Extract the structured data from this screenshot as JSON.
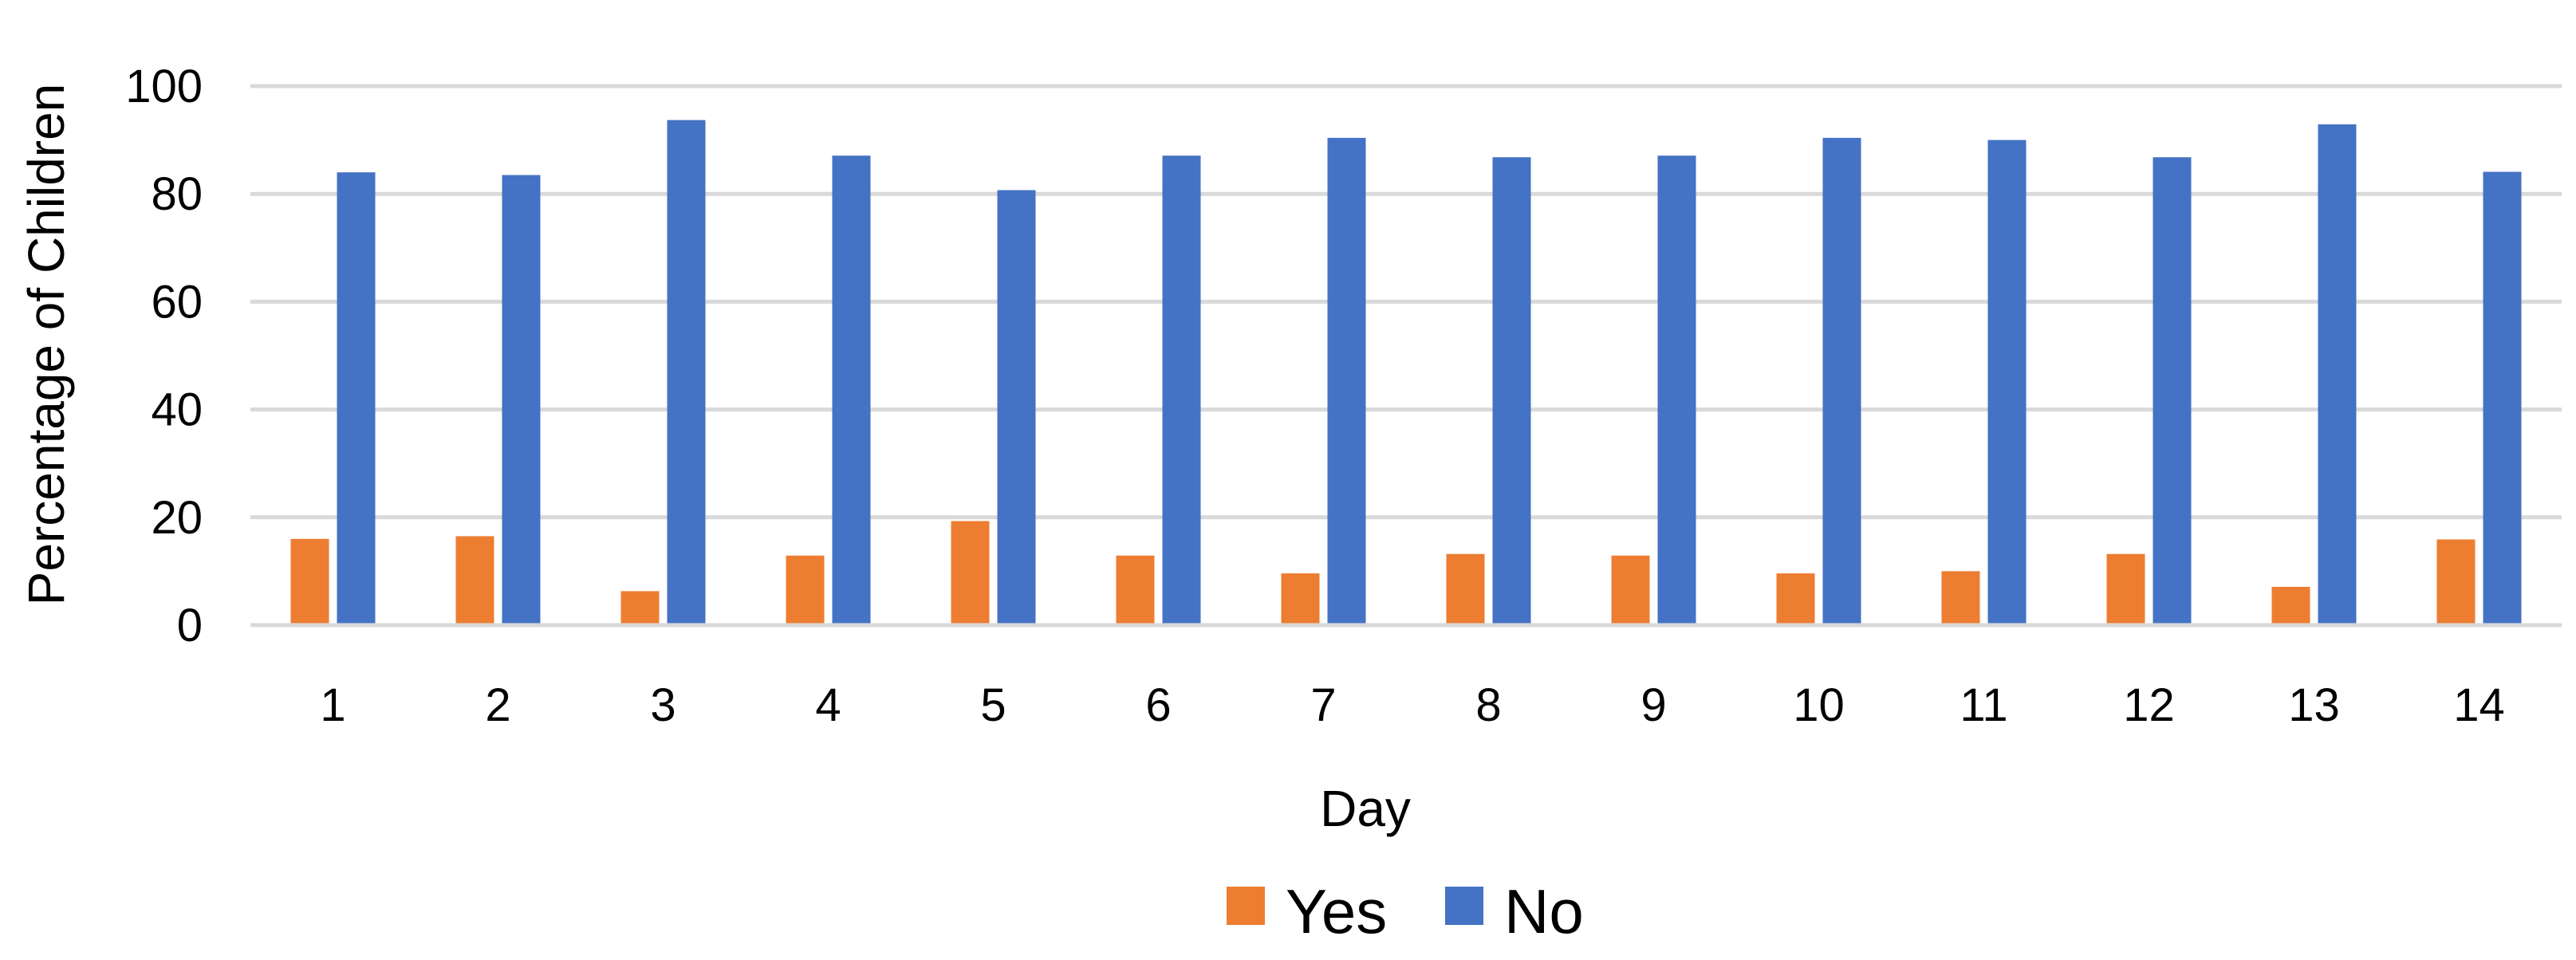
{
  "chart_data": {
    "type": "bar",
    "categories": [
      "1",
      "2",
      "3",
      "4",
      "5",
      "6",
      "7",
      "8",
      "9",
      "10",
      "11",
      "12",
      "13",
      "14"
    ],
    "series": [
      {
        "name": "Yes",
        "color": "#ED7D31",
        "values": [
          16,
          16.5,
          6.3,
          12.9,
          19.3,
          12.9,
          9.6,
          13.2,
          12.9,
          9.6,
          10,
          13.2,
          7.1,
          15.9
        ]
      },
      {
        "name": "No",
        "color": "#4472C4",
        "values": [
          84,
          83.5,
          93.7,
          87.1,
          80.7,
          87.1,
          90.4,
          86.8,
          87.1,
          90.4,
          90,
          86.8,
          92.9,
          84.1
        ]
      }
    ],
    "xlabel": "Day",
    "ylabel": "Percentage of Children",
    "ylim": [
      0,
      100
    ],
    "yticks": [
      "0",
      "20",
      "40",
      "60",
      "80",
      "100"
    ],
    "grid": true,
    "legend_position": "bottom"
  }
}
